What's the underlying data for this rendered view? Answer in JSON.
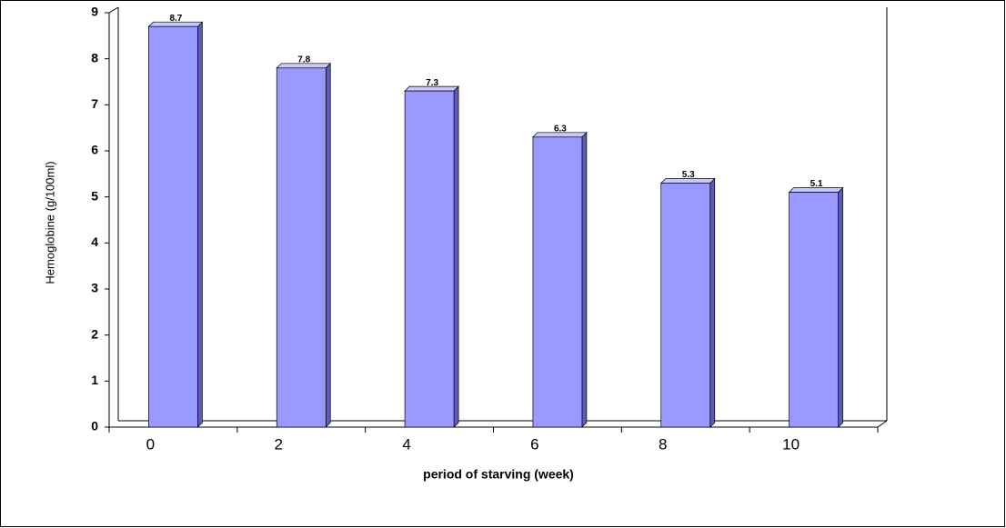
{
  "chart_data": {
    "type": "bar",
    "y_label": "Hemoglobine (g/100ml)",
    "x_label": "period of starving (week)",
    "categories": [
      "0",
      "2",
      "4",
      "6",
      "8",
      "10"
    ],
    "values": [
      8.7,
      7.8,
      7.3,
      6.3,
      5.3,
      5.1
    ],
    "color": "#9999ff",
    "ylim": [
      0,
      9
    ],
    "yticks": [
      0,
      1,
      2,
      3,
      4,
      5,
      6,
      7,
      8,
      9
    ],
    "grid": false
  }
}
